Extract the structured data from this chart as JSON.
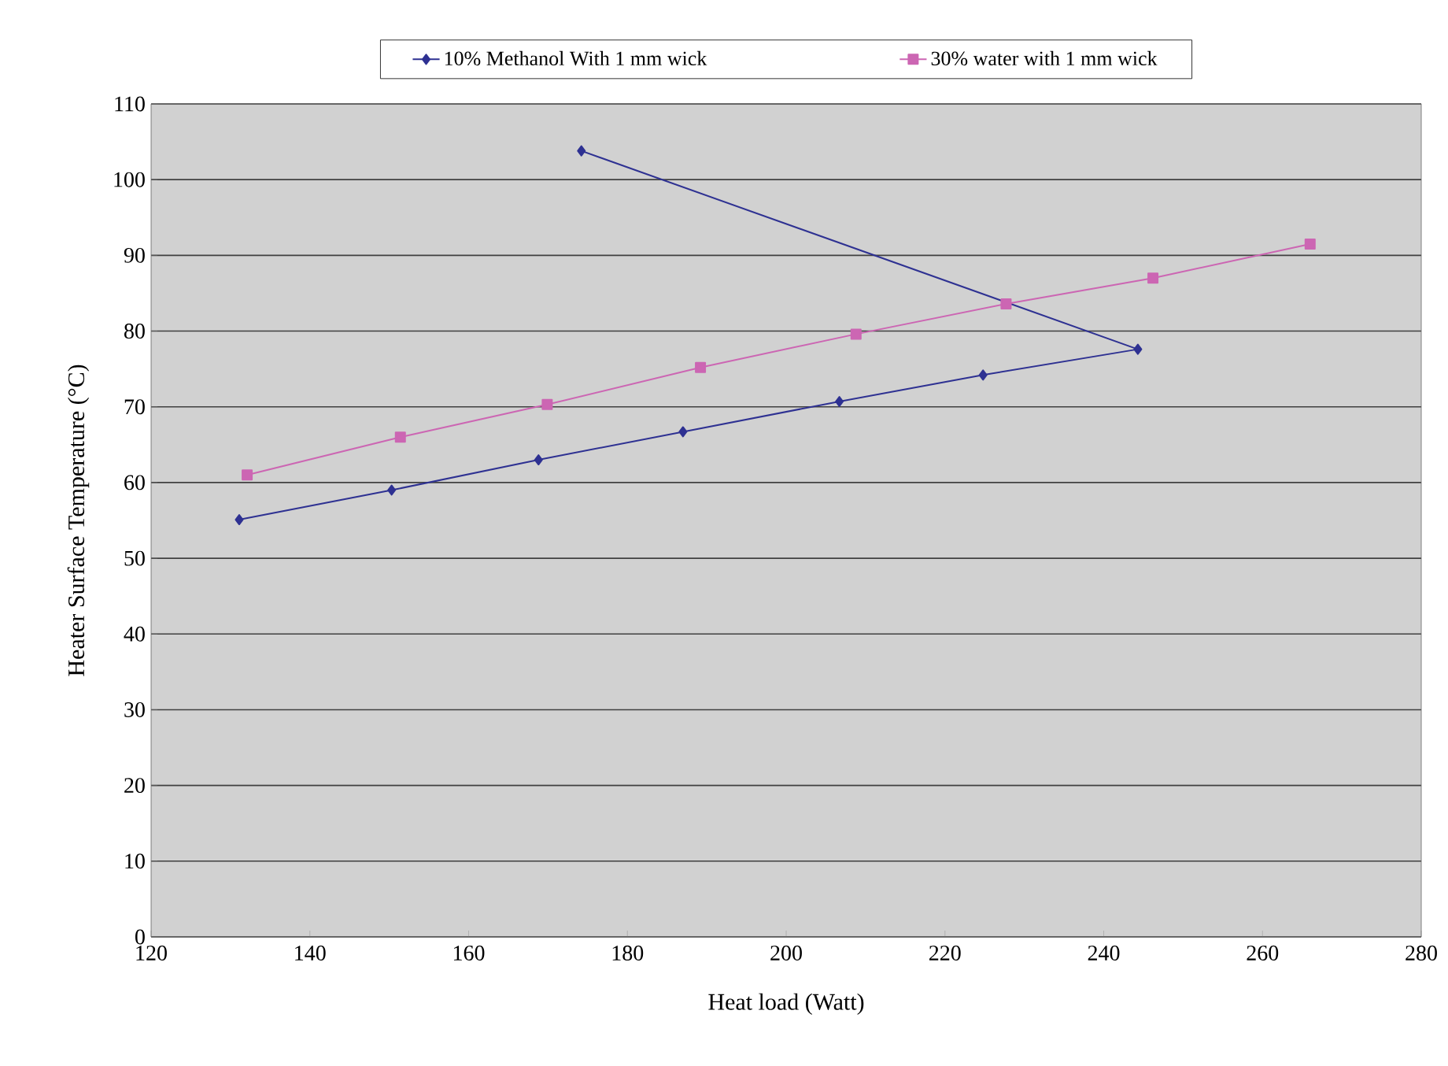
{
  "chart_data": {
    "type": "line",
    "xlabel": "Heat load (Watt)",
    "ylabel": "Heater Surface Temperature (°C)",
    "xlim": [
      120,
      280
    ],
    "xticks": [
      120,
      140,
      160,
      180,
      200,
      220,
      240,
      260,
      280
    ],
    "ylim": [
      0,
      110
    ],
    "yticks": [
      0,
      10,
      20,
      30,
      40,
      50,
      60,
      70,
      80,
      90,
      100,
      110
    ],
    "grid": "y",
    "legend": "top",
    "series": [
      {
        "name": "10% Methanol With 1 mm wick",
        "color": "#2e3192",
        "marker": "diamond",
        "x": [
          131.1,
          150.3,
          168.8,
          187.0,
          206.7,
          224.8,
          244.3,
          174.2
        ],
        "values": [
          55.1,
          59.0,
          63.0,
          66.7,
          70.7,
          74.2,
          77.6,
          103.8
        ]
      },
      {
        "name": "30% water with 1 mm wick",
        "color": "#cc66b3",
        "marker": "square",
        "x": [
          132.1,
          151.4,
          169.9,
          189.2,
          208.8,
          227.7,
          246.2,
          266.0
        ],
        "values": [
          61.0,
          66.0,
          70.3,
          75.2,
          79.6,
          83.6,
          87.0,
          91.5
        ]
      }
    ]
  }
}
